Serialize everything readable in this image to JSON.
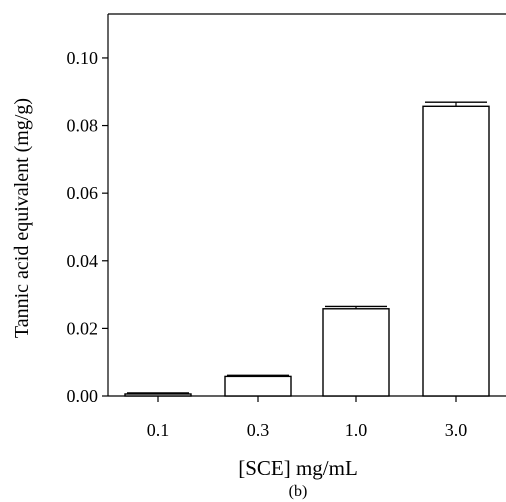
{
  "chart_data": {
    "type": "bar",
    "categories": [
      "0.1",
      "0.3",
      "1.0",
      "3.0"
    ],
    "values": [
      0.0006,
      0.0058,
      0.0258,
      0.0857
    ],
    "errors": [
      0.0003,
      0.0003,
      0.0007,
      0.0012
    ],
    "ylim": [
      0,
      0.113
    ],
    "yticks": [
      0.0,
      0.02,
      0.04,
      0.06,
      0.08,
      0.1
    ],
    "ytick_labels": [
      "0.00",
      "0.02",
      "0.04",
      "0.06",
      "0.08",
      "0.10"
    ],
    "xlabel": "[SCE] mg/mL",
    "ylabel": "Tannic acid equivalent (mg/g)",
    "panel_label": "(b)",
    "bar_fill": "#ffffff",
    "bar_stroke": "#000000",
    "grid": false,
    "legend": "none"
  }
}
